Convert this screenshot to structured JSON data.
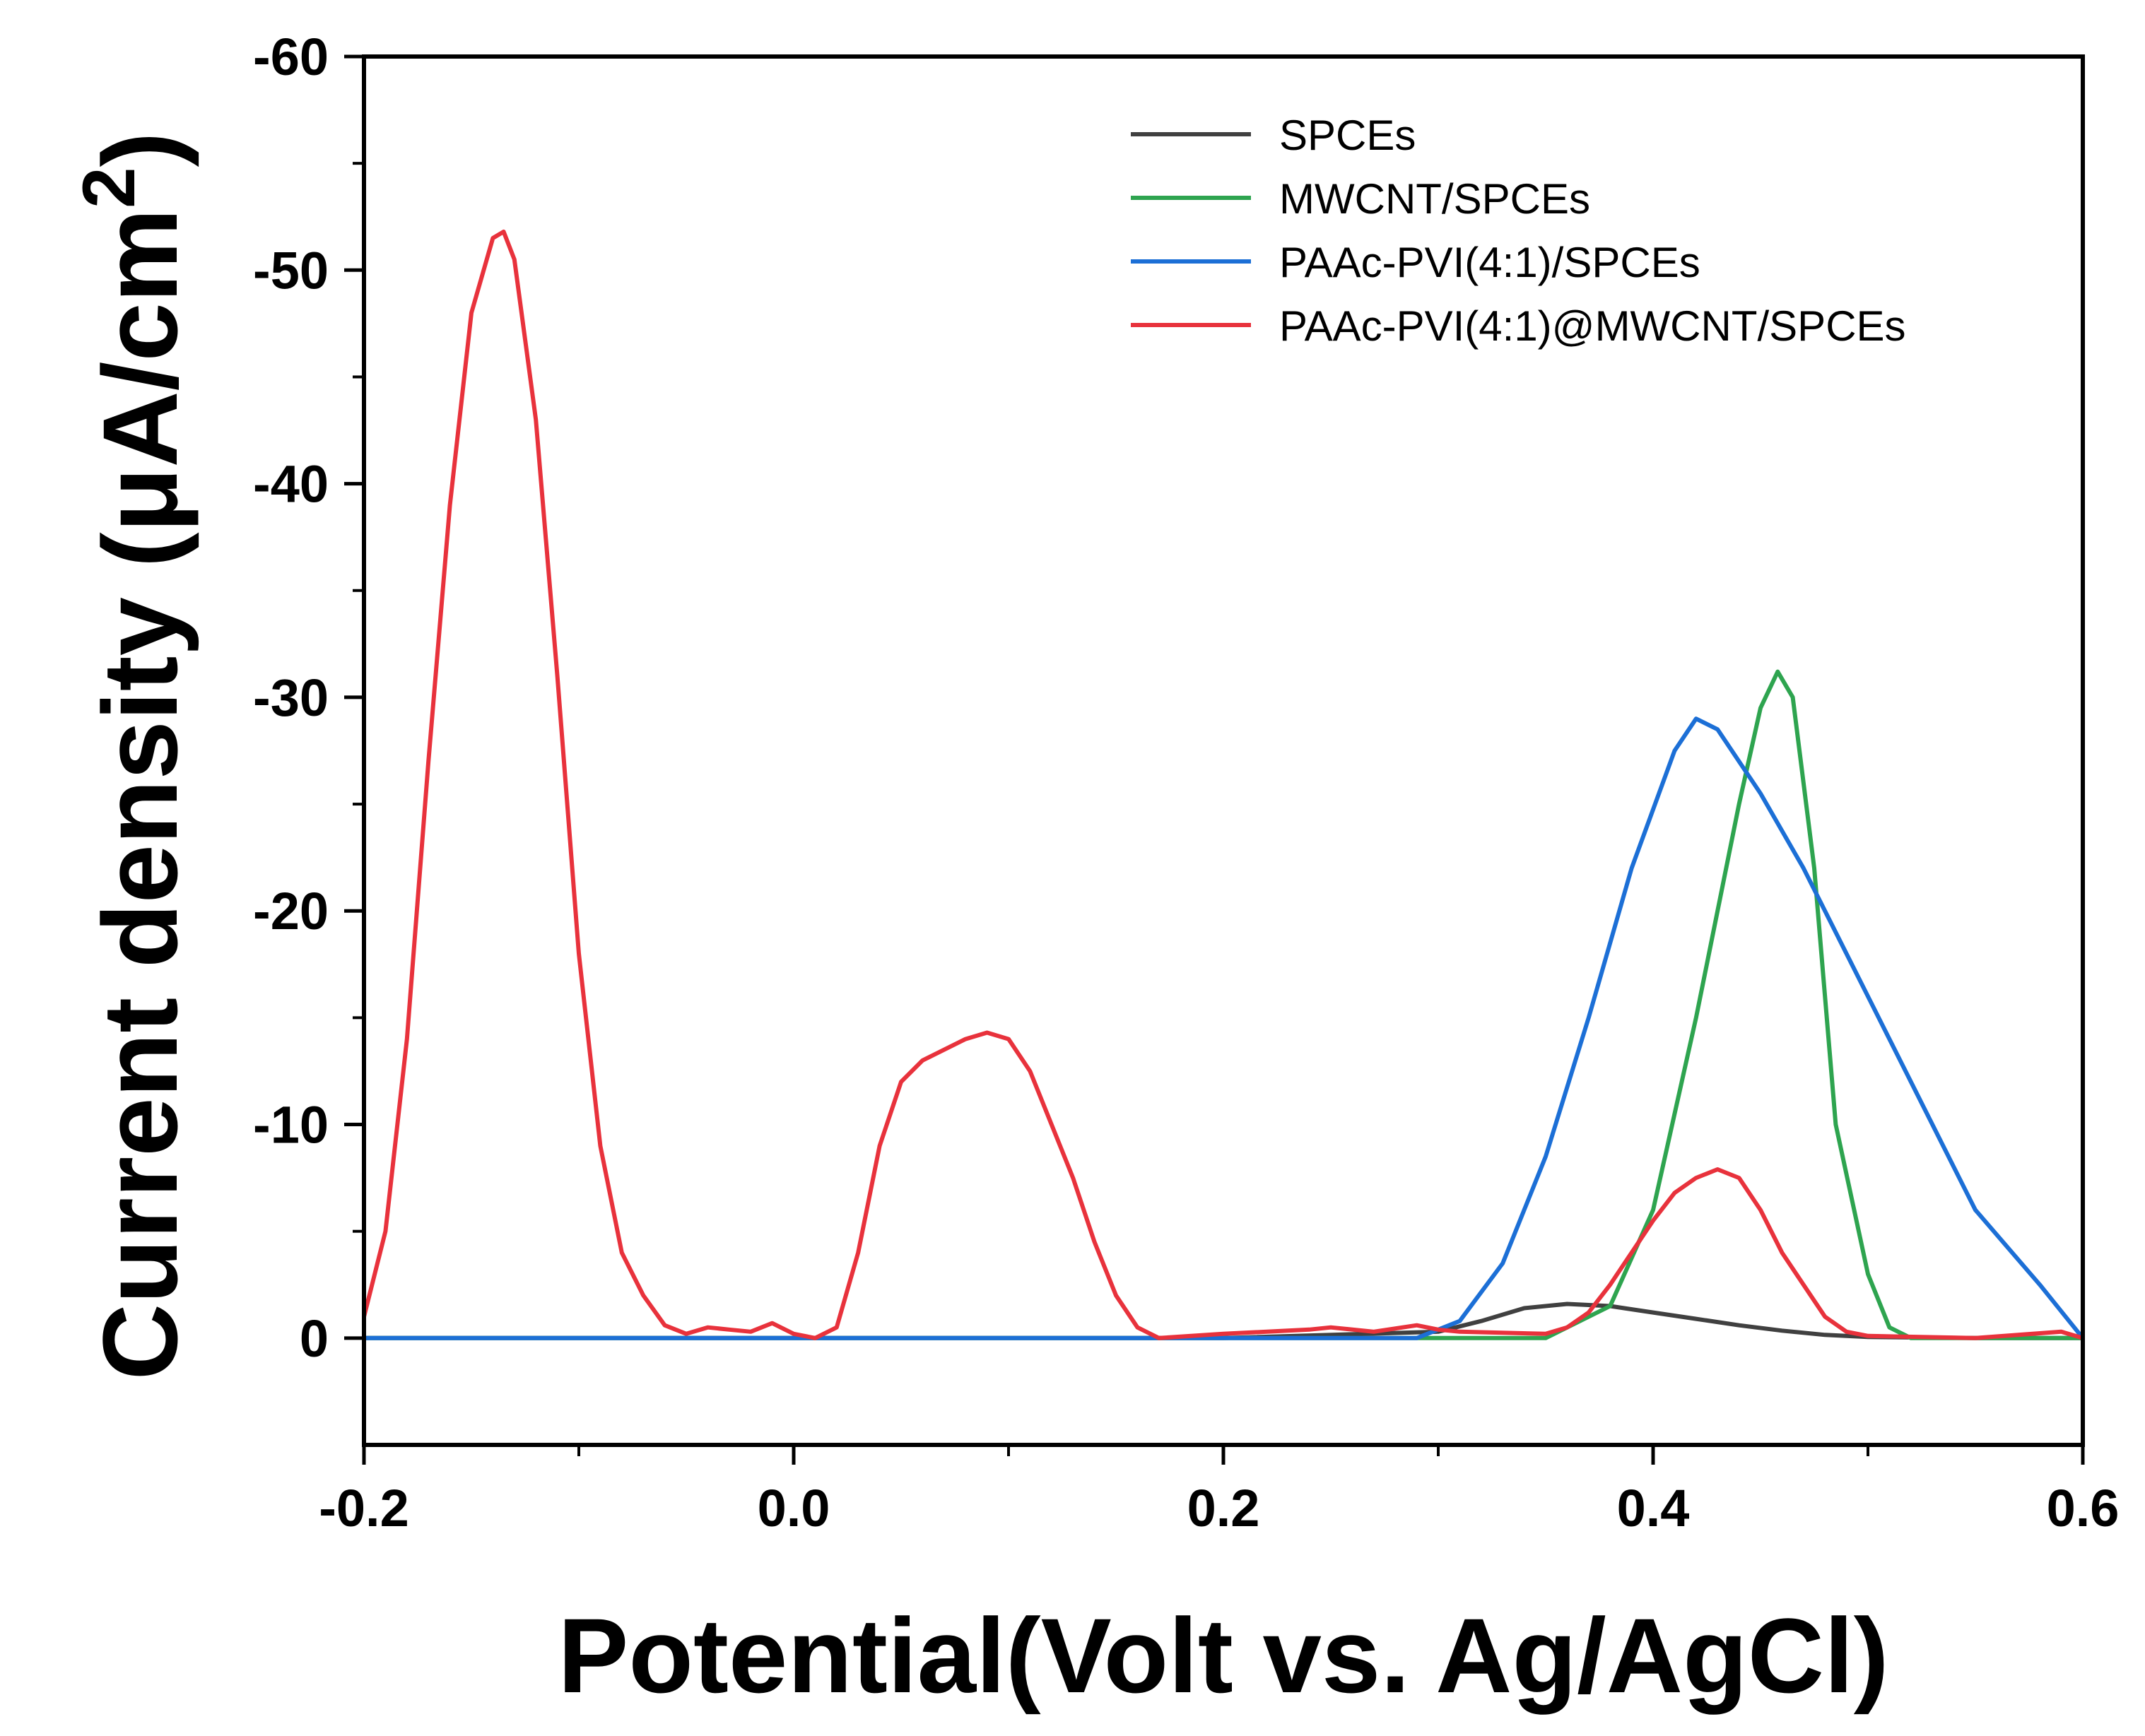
{
  "chart_data": {
    "type": "line",
    "title": "",
    "xlabel": "Potential(Volt vs. Ag/AgCl)",
    "ylabel_main": "Current density (μA/cm",
    "ylabel_sup": "2",
    "ylabel_close": ")",
    "ylabel": "Current density (μA/cm2)",
    "xlim": [
      -0.2,
      0.6
    ],
    "ylim": [
      5,
      -60
    ],
    "y_inverted": true,
    "x_ticks": [
      -0.2,
      0.0,
      0.2,
      0.4,
      0.6
    ],
    "x_tick_labels": [
      "-0.2",
      "0.0",
      "0.2",
      "0.4",
      "0.6"
    ],
    "y_ticks": [
      0,
      -10,
      -20,
      -30,
      -40,
      -50,
      -60
    ],
    "y_tick_labels": [
      "0",
      "-10",
      "-20",
      "-30",
      "-40",
      "-50",
      "-60"
    ],
    "legend_position": "top-right",
    "grid": false,
    "series": [
      {
        "name": "SPCEs",
        "color": "#404040",
        "x": [
          -0.2,
          0.0,
          0.2,
          0.3,
          0.32,
          0.34,
          0.36,
          0.38,
          0.4,
          0.42,
          0.44,
          0.46,
          0.48,
          0.5,
          0.55,
          0.6
        ],
        "y": [
          0,
          0,
          0,
          -0.3,
          -0.8,
          -1.4,
          -1.6,
          -1.5,
          -1.2,
          -0.9,
          -0.6,
          -0.35,
          -0.15,
          -0.05,
          0,
          0
        ]
      },
      {
        "name": "MWCNT/SPCEs",
        "color": "#2ea44f",
        "x": [
          -0.2,
          0.0,
          0.2,
          0.3,
          0.35,
          0.36,
          0.38,
          0.4,
          0.42,
          0.44,
          0.45,
          0.458,
          0.465,
          0.475,
          0.485,
          0.5,
          0.51,
          0.52,
          0.6
        ],
        "y": [
          0,
          0,
          0,
          0,
          0,
          -0.5,
          -1.5,
          -6,
          -15,
          -25,
          -29.5,
          -31.2,
          -30,
          -22,
          -10,
          -3,
          -0.5,
          0,
          0
        ]
      },
      {
        "name": "PAAc-PVI(4:1)/SPCEs",
        "color": "#1c6fd6",
        "x": [
          -0.2,
          0.0,
          0.2,
          0.29,
          0.31,
          0.33,
          0.35,
          0.37,
          0.39,
          0.41,
          0.42,
          0.43,
          0.45,
          0.47,
          0.5,
          0.52,
          0.55,
          0.58,
          0.6
        ],
        "y": [
          0,
          0,
          0,
          0,
          -0.8,
          -3.5,
          -8.5,
          -15,
          -22,
          -27.5,
          -29,
          -28.5,
          -25.5,
          -22,
          -16,
          -12,
          -6,
          -2.5,
          0
        ]
      },
      {
        "name": "PAAc-PVI(4:1)@MWCNT/SPCEs",
        "color": "#e8323c",
        "x": [
          -0.2,
          -0.19,
          -0.18,
          -0.17,
          -0.16,
          -0.15,
          -0.14,
          -0.135,
          -0.13,
          -0.12,
          -0.11,
          -0.1,
          -0.09,
          -0.08,
          -0.07,
          -0.06,
          -0.05,
          -0.04,
          -0.03,
          -0.02,
          -0.01,
          0.0,
          0.01,
          0.02,
          0.03,
          0.04,
          0.05,
          0.06,
          0.07,
          0.08,
          0.09,
          0.1,
          0.11,
          0.12,
          0.13,
          0.14,
          0.15,
          0.16,
          0.17,
          0.2,
          0.24,
          0.25,
          0.27,
          0.29,
          0.3,
          0.31,
          0.35,
          0.36,
          0.37,
          0.38,
          0.39,
          0.4,
          0.41,
          0.42,
          0.43,
          0.44,
          0.45,
          0.46,
          0.47,
          0.48,
          0.49,
          0.5,
          0.55,
          0.59,
          0.6
        ],
        "y": [
          -1,
          -5,
          -14,
          -27,
          -39,
          -48,
          -51.5,
          -51.8,
          -50.5,
          -43,
          -31,
          -18,
          -9,
          -4,
          -2,
          -0.6,
          -0.2,
          -0.5,
          -0.4,
          -0.3,
          -0.7,
          -0.2,
          0,
          -0.5,
          -4,
          -9,
          -12,
          -13,
          -13.5,
          -14,
          -14.3,
          -14,
          -12.5,
          -10,
          -7.5,
          -4.5,
          -2,
          -0.5,
          0,
          -0.2,
          -0.4,
          -0.5,
          -0.3,
          -0.6,
          -0.4,
          -0.3,
          -0.2,
          -0.5,
          -1.2,
          -2.5,
          -4,
          -5.5,
          -6.8,
          -7.5,
          -7.9,
          -7.5,
          -6,
          -4,
          -2.5,
          -1,
          -0.3,
          -0.1,
          0,
          -0.3,
          0
        ]
      }
    ]
  }
}
